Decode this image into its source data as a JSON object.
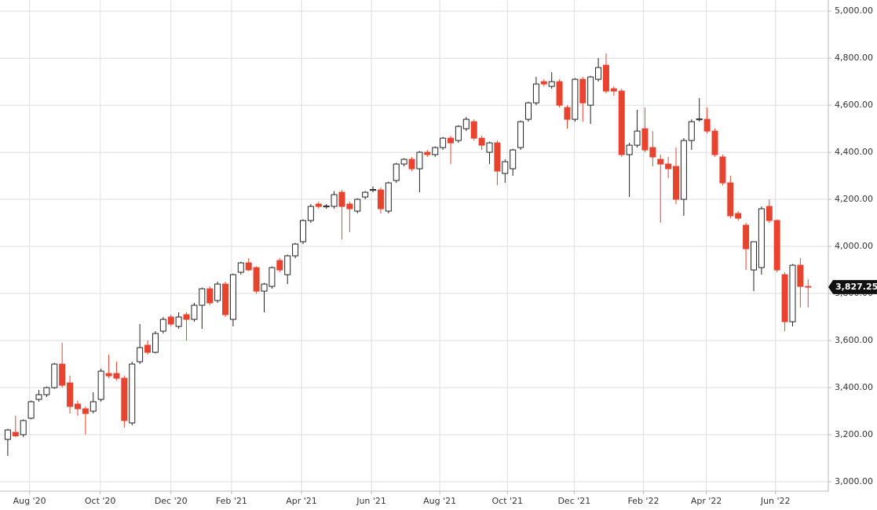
{
  "chart_data": {
    "type": "candlestick",
    "series": [
      {
        "up_color": "#ffffff",
        "up_stroke": "#222222",
        "down_color": "#e8432f",
        "open": [
          3180,
          3210,
          3200,
          3270,
          3350,
          3370,
          3400,
          3500,
          3420,
          3330,
          3310,
          3300,
          3350,
          3460,
          3460,
          3440,
          3250,
          3510,
          3580,
          3550,
          3640,
          3700,
          3660,
          3710,
          3690,
          3750,
          3820,
          3770,
          3840,
          3690,
          3890,
          3930,
          3910,
          3810,
          3830,
          3940,
          3880,
          3960,
          4020,
          4110,
          4180,
          4168,
          4170,
          4230,
          4180,
          4150,
          4210,
          4238,
          4240,
          4150,
          4280,
          4350,
          4370,
          4330,
          4400,
          4390,
          4420,
          4460,
          4450,
          4500,
          4530,
          4460,
          4400,
          4440,
          4310,
          4330,
          4420,
          4540,
          4610,
          4700,
          4680,
          4700,
          4590,
          4540,
          4710,
          4600,
          4710,
          4770,
          4670,
          4660,
          4390,
          4430,
          4500,
          4420,
          4370,
          4350,
          4340,
          4200,
          4450,
          4538,
          4540,
          4490,
          4380,
          4270,
          4140,
          4090,
          3900,
          3910,
          4170,
          4110,
          3880,
          3680,
          3920,
          3830
        ],
        "high": [
          3225,
          3280,
          3265,
          3345,
          3390,
          3405,
          3505,
          3590,
          3450,
          3345,
          3320,
          3380,
          3480,
          3540,
          3510,
          3450,
          3510,
          3670,
          3600,
          3640,
          3700,
          3710,
          3720,
          3720,
          3760,
          3825,
          3830,
          3850,
          3850,
          3885,
          3935,
          3950,
          3915,
          3845,
          3915,
          3950,
          3965,
          4015,
          4115,
          4180,
          4190,
          4180,
          4235,
          4240,
          4190,
          4205,
          4235,
          4255,
          4250,
          4275,
          4355,
          4375,
          4380,
          4405,
          4410,
          4425,
          4465,
          4470,
          4515,
          4550,
          4540,
          4470,
          4445,
          4450,
          4370,
          4415,
          4535,
          4615,
          4720,
          4710,
          4740,
          4710,
          4600,
          4715,
          4720,
          4725,
          4800,
          4820,
          4680,
          4670,
          4440,
          4580,
          4590,
          4490,
          4390,
          4380,
          4420,
          4460,
          4540,
          4630,
          4590,
          4500,
          4390,
          4300,
          4150,
          4100,
          4020,
          4170,
          4200,
          4115,
          3890,
          3925,
          3950,
          3860
        ],
        "low": [
          3110,
          3190,
          3190,
          3265,
          3340,
          3360,
          3395,
          3400,
          3290,
          3280,
          3200,
          3290,
          3340,
          3440,
          3430,
          3230,
          3240,
          3500,
          3540,
          3545,
          3630,
          3660,
          3650,
          3600,
          3680,
          3650,
          3750,
          3760,
          3700,
          3660,
          3880,
          3895,
          3800,
          3720,
          3820,
          3890,
          3840,
          3950,
          4010,
          4100,
          4160,
          4160,
          4160,
          4030,
          4060,
          4140,
          4200,
          4230,
          4140,
          4140,
          4270,
          4340,
          4320,
          4230,
          4380,
          4380,
          4410,
          4350,
          4440,
          4490,
          4450,
          4410,
          4350,
          4260,
          4270,
          4300,
          4410,
          4530,
          4600,
          4680,
          4670,
          4590,
          4500,
          4530,
          4530,
          4520,
          4700,
          4650,
          4640,
          4380,
          4210,
          4420,
          4400,
          4340,
          4100,
          4290,
          4180,
          4130,
          4410,
          4530,
          4480,
          4380,
          4260,
          4120,
          4110,
          3900,
          3810,
          3880,
          4100,
          3890,
          3640,
          3660,
          3740,
          3740
        ],
        "close": [
          3220,
          3195,
          3260,
          3340,
          3370,
          3400,
          3500,
          3410,
          3320,
          3310,
          3290,
          3340,
          3470,
          3450,
          3440,
          3260,
          3500,
          3570,
          3550,
          3630,
          3690,
          3670,
          3700,
          3690,
          3750,
          3820,
          3760,
          3840,
          3710,
          3880,
          3930,
          3900,
          3810,
          3840,
          3910,
          3900,
          3960,
          4010,
          4110,
          4170,
          4170,
          4172,
          4220,
          4170,
          4160,
          4200,
          4230,
          4242,
          4160,
          4270,
          4350,
          4370,
          4330,
          4400,
          4390,
          4420,
          4460,
          4440,
          4510,
          4540,
          4460,
          4430,
          4440,
          4320,
          4360,
          4410,
          4530,
          4610,
          4690,
          4690,
          4700,
          4600,
          4540,
          4710,
          4610,
          4720,
          4760,
          4660,
          4660,
          4390,
          4430,
          4490,
          4410,
          4380,
          4350,
          4330,
          4200,
          4450,
          4530,
          4542,
          4490,
          4390,
          4270,
          4130,
          4120,
          3990,
          4020,
          4160,
          4110,
          3900,
          3680,
          3920,
          3830,
          3827.25
        ]
      }
    ],
    "last_close": {
      "value": 3827.25,
      "label": "3,827.25"
    },
    "xlim": [
      -1,
      105.6
    ],
    "xticks": [
      {
        "value": 2.8,
        "label": "Aug '20"
      },
      {
        "value": 11.9,
        "label": "Oct '20"
      },
      {
        "value": 21.0,
        "label": "Dec '20"
      },
      {
        "value": 28.8,
        "label": "Feb '21"
      },
      {
        "value": 37.8,
        "label": "Apr '21"
      },
      {
        "value": 46.8,
        "label": "Jun '21"
      },
      {
        "value": 55.6,
        "label": "Aug '21"
      },
      {
        "value": 64.3,
        "label": "Oct '21"
      },
      {
        "value": 72.9,
        "label": "Dec '21"
      },
      {
        "value": 81.8,
        "label": "Feb '22"
      },
      {
        "value": 89.9,
        "label": "Apr '22"
      },
      {
        "value": 98.8,
        "label": "Jun '22"
      }
    ],
    "ylim": [
      2960,
      5047
    ],
    "yticks": [
      {
        "value": 3000,
        "label": "3,000.00"
      },
      {
        "value": 3200,
        "label": "3,200.00"
      },
      {
        "value": 3400,
        "label": "3,400.00"
      },
      {
        "value": 3600,
        "label": "3,600.00"
      },
      {
        "value": 3800,
        "label": "3,800.00"
      },
      {
        "value": 4000,
        "label": "4,000.00"
      },
      {
        "value": 4200,
        "label": "4,200.00"
      },
      {
        "value": 4400,
        "label": "4,400.00"
      },
      {
        "value": 4600,
        "label": "4,600.00"
      },
      {
        "value": 4800,
        "label": "4,800.00"
      },
      {
        "value": 5000,
        "label": "5,000.00"
      }
    ],
    "grid": true
  }
}
